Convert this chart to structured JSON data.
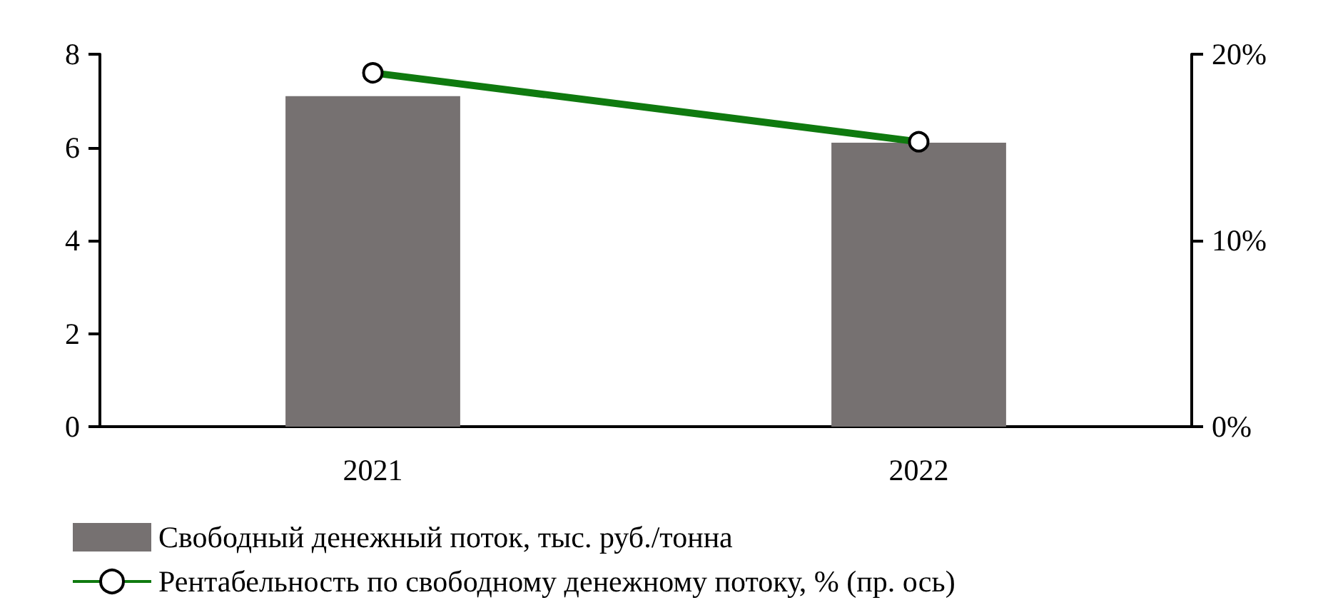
{
  "chart_data": {
    "type": "bar",
    "categories": [
      "2021",
      "2022"
    ],
    "series": [
      {
        "name": "Свободный денежный поток, тыс. руб./тонна",
        "color": "#767171",
        "values": [
          7.1,
          6.1
        ]
      },
      {
        "name": "Рентабельность по свободному денежному потоку, % (пр. ось)",
        "type": "line",
        "axis": "y2",
        "color": "#0f7a0f",
        "values": [
          19.0,
          15.3
        ],
        "marker": "circle"
      }
    ],
    "ylim": [
      0,
      8
    ],
    "yticks": [
      0,
      2,
      4,
      6,
      8
    ],
    "y2lim": [
      0,
      20
    ],
    "y2ticks": [
      {
        "value": 0,
        "label": "0%"
      },
      {
        "value": 10,
        "label": "10%"
      },
      {
        "value": 20,
        "label": "20%"
      }
    ],
    "grid": false,
    "legend": "bottom left"
  }
}
